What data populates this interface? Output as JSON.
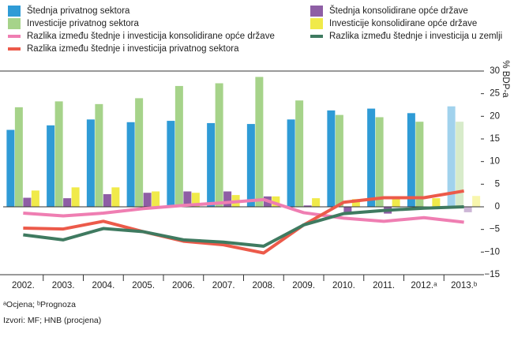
{
  "chart_data": {
    "type": "bar-line",
    "categories": [
      "2002.",
      "2003.",
      "2004.",
      "2005.",
      "2006.",
      "2007.",
      "2008.",
      "2009.",
      "2010.",
      "2011.",
      "2012.ᵃ",
      "2013.ᵇ"
    ],
    "series": [
      {
        "name": "Štednja privatnog sektora",
        "kind": "bar",
        "color": "#2f9bd6",
        "values": [
          17,
          18,
          19.3,
          18.7,
          19,
          18.5,
          18.3,
          19.3,
          21.3,
          21.7,
          20.7,
          22.2
        ]
      },
      {
        "name": "Investicije privatnog sektora",
        "kind": "bar",
        "color": "#a6d38a",
        "values": [
          22,
          23.3,
          22.7,
          24,
          26.7,
          27.3,
          28.7,
          23.5,
          20.3,
          19.8,
          18.8,
          18.8
        ]
      },
      {
        "name": "Štednja konsolidirane opće države",
        "kind": "bar",
        "color": "#8e5ea5",
        "values": [
          2,
          1.9,
          2.8,
          3.1,
          3.4,
          3.4,
          2.3,
          0.3,
          -1.3,
          -1.5,
          -0.4,
          -1.2
        ]
      },
      {
        "name": "Investicije konsolidirane opće države",
        "kind": "bar",
        "color": "#f0ea4a",
        "values": [
          3.6,
          4.3,
          4.3,
          3.4,
          3.1,
          2.6,
          2.3,
          1.9,
          1.7,
          1.7,
          1.9,
          2.4
        ]
      },
      {
        "name": "Razlika između štednje i investicija konsolidirane opće države",
        "kind": "line",
        "color": "#ef7eb2",
        "values": [
          -1.4,
          -2,
          -1.4,
          -0.4,
          0.3,
          0.9,
          1.6,
          -1.3,
          -2.5,
          -3.2,
          -2.4,
          -3.4
        ]
      },
      {
        "name": "Razlika između štednje i investicija privatnog sektora",
        "kind": "line",
        "color": "#ec5a4a",
        "values": [
          -4.7,
          -4.9,
          -3.2,
          -5.5,
          -7.6,
          -8.4,
          -10.2,
          -4,
          1,
          2,
          2,
          3.5
        ]
      },
      {
        "name": "Razlika između štednje i investicija u zemlji",
        "kind": "line",
        "color": "#3f7a60",
        "values": [
          -6.2,
          -7.3,
          -4.8,
          -5.5,
          -7.3,
          -7.8,
          -8.7,
          -4,
          -1.5,
          -0.8,
          -0.3,
          0
        ]
      }
    ],
    "ylim": [
      -15,
      30
    ],
    "yticks": [
      {
        "value": -15,
        "label": "−15"
      },
      {
        "value": -10,
        "label": "−10"
      },
      {
        "value": -5,
        "label": "−5"
      },
      0,
      5,
      10,
      15,
      20,
      25,
      30
    ],
    "ylabel": "% BDP-a",
    "note": "ᵃOcjena; ᵇPrognoza",
    "source": "Izvori: MF; HNB (procjena)"
  }
}
